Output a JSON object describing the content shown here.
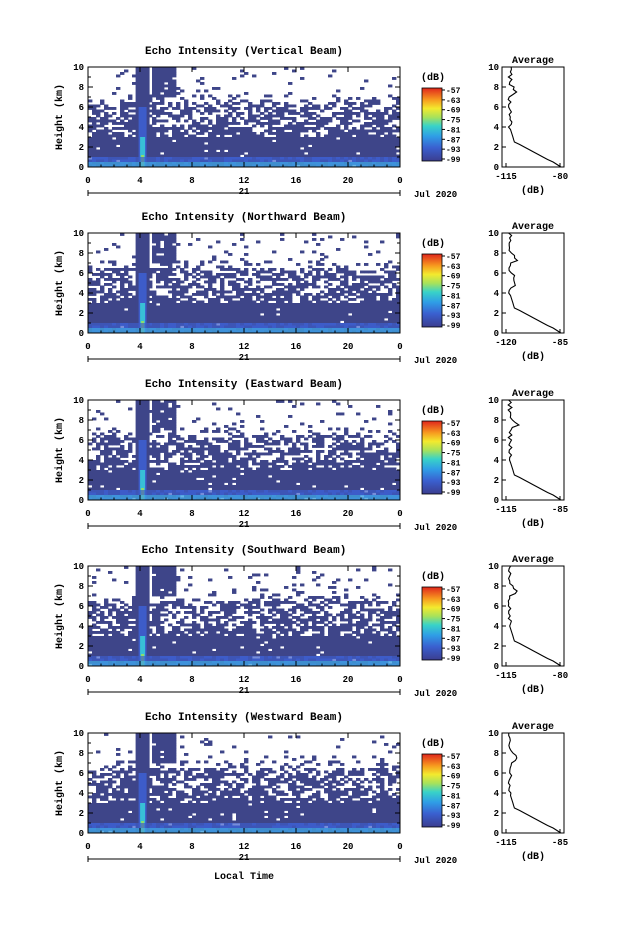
{
  "figure": {
    "xlabel": "Local Time",
    "date_label": "Jul 2020",
    "day_label": "21",
    "colorbar_unit": "(dB)",
    "profile_title": "Average",
    "profile_xlabel": "(dB)"
  },
  "chart_data": [
    {
      "type": "heatmap",
      "title": "Echo Intensity (Vertical Beam)",
      "ylabel": "Height (km)",
      "xlim": [
        0,
        24
      ],
      "ylim": [
        0,
        10
      ],
      "xticks": [
        "0",
        "4",
        "8",
        "12",
        "16",
        "20",
        "0"
      ],
      "yticks": [
        "0",
        "2",
        "4",
        "6",
        "8",
        "10"
      ],
      "colorbar_ticks": [
        "-57",
        "-63",
        "-69",
        "-75",
        "-81",
        "-87",
        "-93",
        "-99"
      ],
      "profile": {
        "xticks": [
          "-115",
          "-80"
        ],
        "xlim": [
          -115,
          -80
        ]
      }
    },
    {
      "type": "heatmap",
      "title": "Echo Intensity (Northward Beam)",
      "ylabel": "Height (km)",
      "xlim": [
        0,
        24
      ],
      "ylim": [
        0,
        10
      ],
      "xticks": [
        "0",
        "4",
        "8",
        "12",
        "16",
        "20",
        "0"
      ],
      "yticks": [
        "0",
        "2",
        "4",
        "6",
        "8",
        "10"
      ],
      "colorbar_ticks": [
        "-57",
        "-63",
        "-69",
        "-75",
        "-81",
        "-87",
        "-93",
        "-99"
      ],
      "profile": {
        "xticks": [
          "-120",
          "-85"
        ],
        "xlim": [
          -120,
          -85
        ]
      }
    },
    {
      "type": "heatmap",
      "title": "Echo Intensity (Eastward Beam)",
      "ylabel": "Height (km)",
      "xlim": [
        0,
        24
      ],
      "ylim": [
        0,
        10
      ],
      "xticks": [
        "0",
        "4",
        "8",
        "12",
        "16",
        "20",
        "0"
      ],
      "yticks": [
        "0",
        "2",
        "4",
        "6",
        "8",
        "10"
      ],
      "colorbar_ticks": [
        "-57",
        "-63",
        "-69",
        "-75",
        "-81",
        "-87",
        "-93",
        "-99"
      ],
      "profile": {
        "xticks": [
          "-115",
          "-85"
        ],
        "xlim": [
          -115,
          -85
        ]
      }
    },
    {
      "type": "heatmap",
      "title": "Echo Intensity (Southward Beam)",
      "ylabel": "Height (km)",
      "xlim": [
        0,
        24
      ],
      "ylim": [
        0,
        10
      ],
      "xticks": [
        "0",
        "4",
        "8",
        "12",
        "16",
        "20",
        "0"
      ],
      "yticks": [
        "0",
        "2",
        "4",
        "6",
        "8",
        "10"
      ],
      "colorbar_ticks": [
        "-57",
        "-63",
        "-69",
        "-75",
        "-81",
        "-87",
        "-93",
        "-99"
      ],
      "profile": {
        "xticks": [
          "-115",
          "-80"
        ],
        "xlim": [
          -115,
          -80
        ]
      }
    },
    {
      "type": "heatmap",
      "title": "Echo Intensity (Westward Beam)",
      "ylabel": "Height (km)",
      "xlim": [
        0,
        24
      ],
      "ylim": [
        0,
        10
      ],
      "xticks": [
        "0",
        "4",
        "8",
        "12",
        "16",
        "20",
        "0"
      ],
      "yticks": [
        "0",
        "2",
        "4",
        "6",
        "8",
        "10"
      ],
      "colorbar_ticks": [
        "-57",
        "-63",
        "-69",
        "-75",
        "-81",
        "-87",
        "-93",
        "-99"
      ],
      "profile": {
        "xticks": [
          "-115",
          "-85"
        ],
        "xlim": [
          -115,
          -85
        ]
      }
    }
  ]
}
